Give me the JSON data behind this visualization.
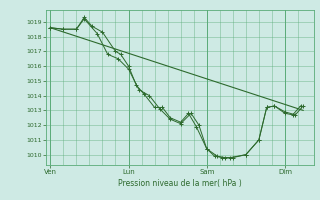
{
  "xlabel": "Pression niveau de la mer( hPa )",
  "bg_color": "#ceeae4",
  "grid_color": "#5aab78",
  "line_color": "#2d6a2d",
  "ylim": [
    1009.3,
    1019.8
  ],
  "yticks": [
    1010,
    1011,
    1012,
    1013,
    1014,
    1015,
    1016,
    1017,
    1018,
    1019
  ],
  "day_labels": [
    "Ven",
    "Lun",
    "Sam",
    "Dim"
  ],
  "day_positions": [
    0.0,
    3.0,
    6.0,
    9.0
  ],
  "xlim": [
    -0.15,
    10.1
  ],
  "series1": [
    [
      0.0,
      1018.6
    ],
    [
      0.5,
      1018.5
    ],
    [
      1.0,
      1018.5
    ],
    [
      1.3,
      1019.3
    ],
    [
      1.6,
      1018.7
    ],
    [
      2.0,
      1018.3
    ],
    [
      2.5,
      1017.0
    ],
    [
      2.7,
      1016.8
    ],
    [
      3.0,
      1016.0
    ],
    [
      3.3,
      1014.7
    ],
    [
      3.6,
      1014.1
    ],
    [
      4.0,
      1013.2
    ],
    [
      4.3,
      1013.2
    ],
    [
      4.6,
      1012.5
    ],
    [
      5.0,
      1012.2
    ],
    [
      5.3,
      1012.8
    ],
    [
      5.6,
      1011.9
    ],
    [
      6.0,
      1010.4
    ],
    [
      6.3,
      1009.9
    ],
    [
      6.6,
      1009.8
    ],
    [
      6.9,
      1009.8
    ],
    [
      7.5,
      1010.0
    ],
    [
      8.0,
      1011.0
    ],
    [
      8.3,
      1013.2
    ],
    [
      8.6,
      1013.3
    ],
    [
      9.0,
      1012.8
    ],
    [
      9.3,
      1012.7
    ],
    [
      9.6,
      1013.3
    ]
  ],
  "series2": [
    [
      0.0,
      1018.6
    ],
    [
      0.5,
      1018.5
    ],
    [
      1.0,
      1018.5
    ],
    [
      1.3,
      1019.2
    ],
    [
      1.8,
      1018.2
    ],
    [
      2.2,
      1016.8
    ],
    [
      2.6,
      1016.5
    ],
    [
      3.0,
      1015.8
    ],
    [
      3.4,
      1014.4
    ],
    [
      3.8,
      1014.0
    ],
    [
      4.2,
      1013.1
    ],
    [
      4.6,
      1012.4
    ],
    [
      5.0,
      1012.1
    ],
    [
      5.4,
      1012.8
    ],
    [
      5.7,
      1012.0
    ],
    [
      6.0,
      1010.4
    ],
    [
      6.4,
      1009.9
    ],
    [
      6.7,
      1009.8
    ],
    [
      7.0,
      1009.8
    ],
    [
      7.5,
      1010.0
    ],
    [
      8.0,
      1011.0
    ],
    [
      8.3,
      1013.2
    ],
    [
      8.6,
      1013.3
    ],
    [
      9.0,
      1012.9
    ],
    [
      9.4,
      1012.7
    ],
    [
      9.7,
      1013.3
    ]
  ],
  "trend_line": [
    [
      0.0,
      1018.6
    ],
    [
      9.7,
      1013.0
    ]
  ],
  "major_vlines": [
    0.0,
    3.0,
    6.0,
    9.0
  ],
  "minor_vlines": [
    0.5,
    1.0,
    1.5,
    2.0,
    2.5,
    3.5,
    4.0,
    4.5,
    5.0,
    5.5,
    6.5,
    7.0,
    7.5,
    8.0,
    8.5,
    9.5
  ]
}
